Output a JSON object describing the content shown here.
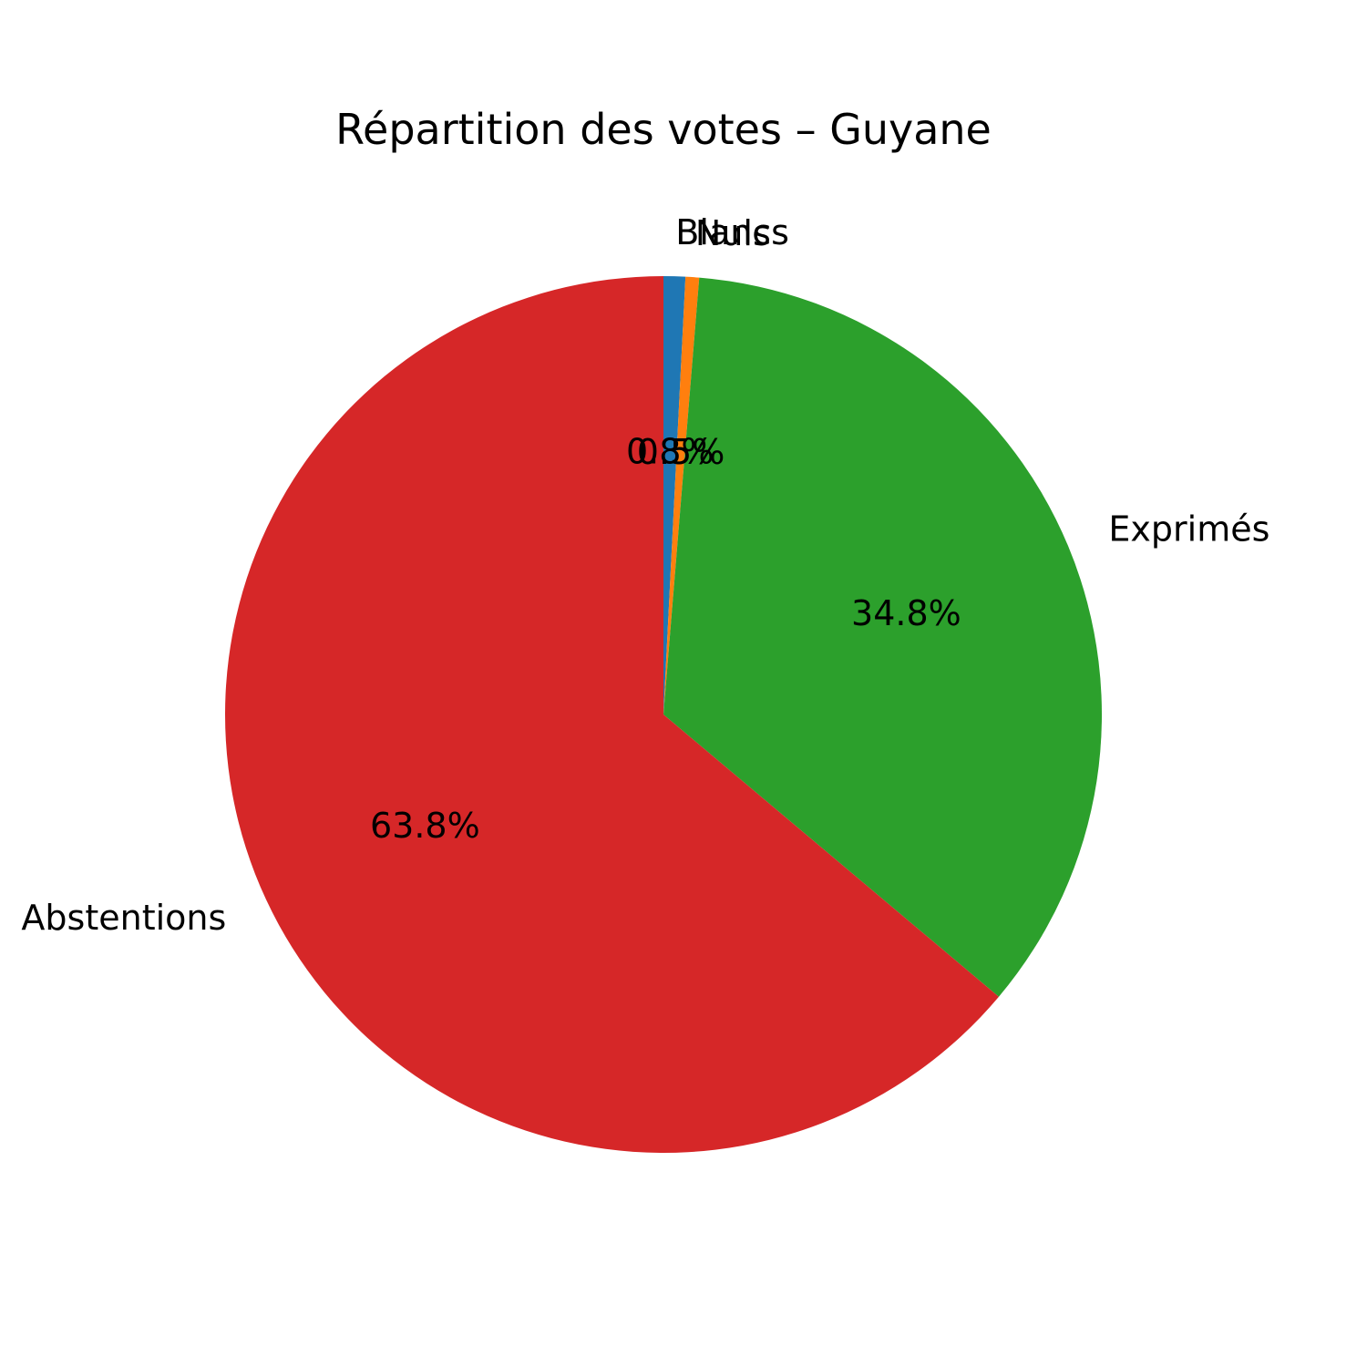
{
  "chart_data": {
    "type": "pie",
    "title": "Répartition des votes – Guyane",
    "start_angle_deg": 90,
    "direction": "clockwise",
    "slices": [
      {
        "label": "Blancs",
        "value": 0.8,
        "percent_label": "0.8%",
        "color": "#1f77b4"
      },
      {
        "label": "Nuls",
        "value": 0.5,
        "percent_label": "0.5%",
        "color": "#ff7f0e"
      },
      {
        "label": "Exprimés",
        "value": 34.8,
        "percent_label": "34.8%",
        "color": "#2ca02c"
      },
      {
        "label": "Abstentions",
        "value": 63.8,
        "percent_label": "63.8%",
        "color": "#d62728"
      }
    ]
  }
}
